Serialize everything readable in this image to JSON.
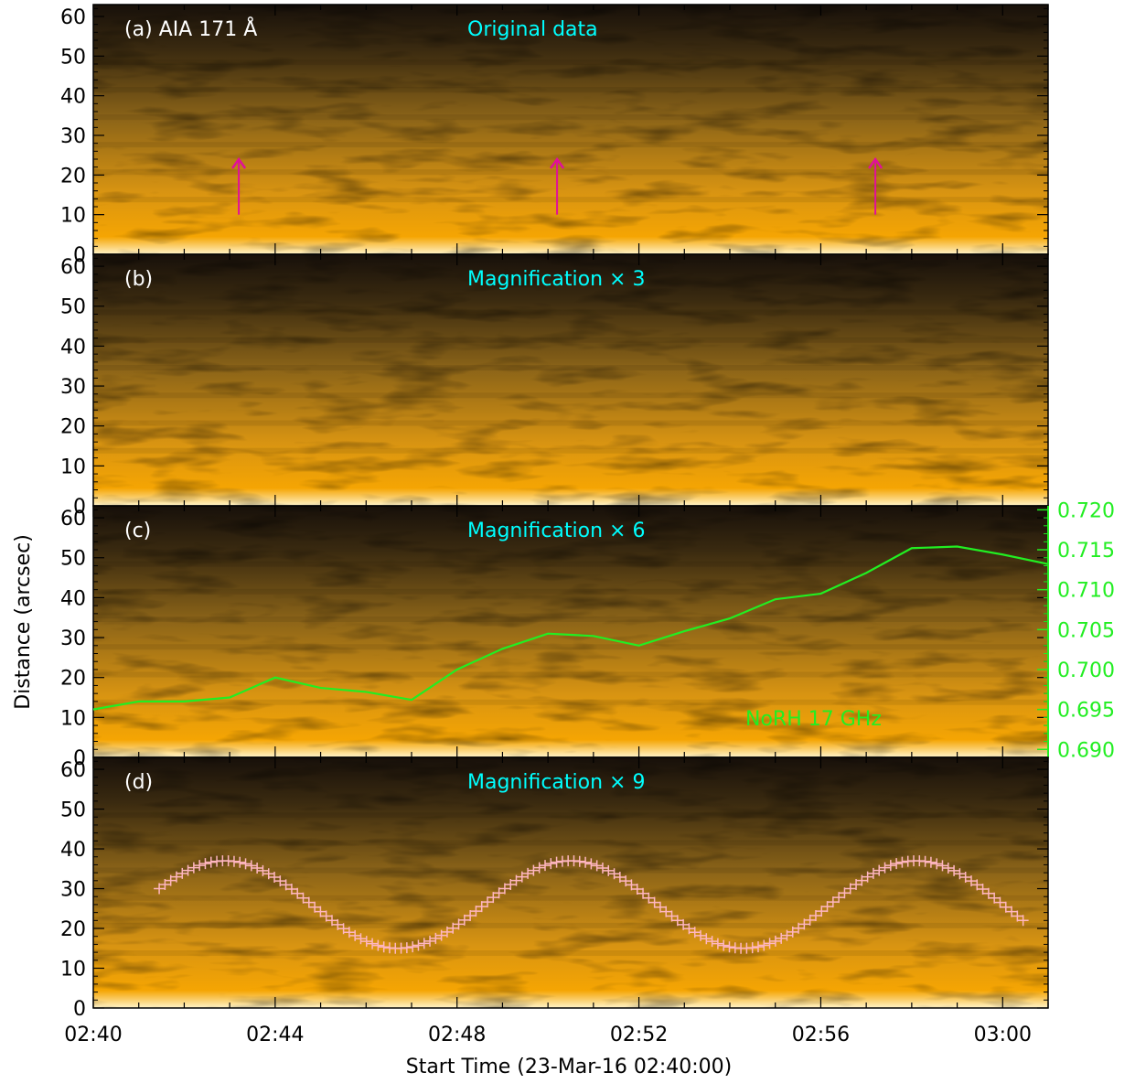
{
  "figure": {
    "xlabel": "Start Time (23-Mar-16 02:40:00)",
    "ylabel": "Distance (arcsec)"
  },
  "colors": {
    "panel_title": "#00ffff",
    "panel_label": "#ffffff",
    "arrow": "#e0109a",
    "norh_curve": "#22ee22",
    "fit_markers": "#ffb6c1",
    "colormap_dark": "#1a1206",
    "colormap_bright": "#ffa500"
  },
  "chart_data": [
    {
      "type": "heatmap",
      "panel_label": "(a) AIA 171 Å",
      "title": "Original data",
      "ylim": [
        0,
        63
      ],
      "xlim_minutes": [
        0,
        21
      ],
      "yticks": [
        "0",
        "10",
        "20",
        "30",
        "40",
        "50",
        "60"
      ],
      "arrows_at_minutes": [
        3.2,
        10.2,
        17.2
      ],
      "arrow_span_arcsec": [
        10,
        24
      ]
    },
    {
      "type": "heatmap",
      "panel_label": "(b)",
      "title": "Magnification × 3",
      "ylim": [
        0,
        63
      ],
      "xlim_minutes": [
        0,
        21
      ],
      "yticks": [
        "0",
        "10",
        "20",
        "30",
        "40",
        "50",
        "60"
      ]
    },
    {
      "type": "heatmap",
      "panel_label": "(c)",
      "title": "Magnification × 6",
      "ylim": [
        0,
        63
      ],
      "xlim_minutes": [
        0,
        21
      ],
      "yticks": [
        "0",
        "10",
        "20",
        "30",
        "40",
        "50",
        "60"
      ],
      "overlay": {
        "type": "line",
        "name": "NoRH 17 GHz",
        "right_axis_lim": [
          0.689,
          0.7205
        ],
        "right_ticks": [
          "0.690",
          "0.695",
          "0.700",
          "0.705",
          "0.710",
          "0.715",
          "0.720"
        ],
        "x_minutes": [
          0,
          1,
          2,
          3,
          4,
          5,
          6,
          7,
          8,
          9,
          10,
          11,
          12,
          13,
          14,
          15,
          16,
          17,
          18,
          19,
          20,
          21
        ],
        "values": [
          0.695,
          0.696,
          0.696,
          0.6965,
          0.699,
          0.6977,
          0.6972,
          0.6962,
          0.7,
          0.7026,
          0.7045,
          0.7042,
          0.703,
          0.7048,
          0.7064,
          0.7088,
          0.7095,
          0.7121,
          0.7152,
          0.7154,
          0.7144,
          0.7132
        ]
      }
    },
    {
      "type": "heatmap",
      "panel_label": "(d)",
      "title": "Magnification × 9",
      "ylim": [
        0,
        63
      ],
      "xlim_minutes": [
        0,
        21
      ],
      "yticks": [
        "0",
        "10",
        "20",
        "30",
        "40",
        "50",
        "60"
      ],
      "xticks": [
        "02:40",
        "02:44",
        "02:48",
        "02:52",
        "02:56",
        "03:00"
      ],
      "xtick_minutes": [
        0,
        4,
        8,
        12,
        16,
        20
      ],
      "overlay": {
        "type": "scatter",
        "marker": "+",
        "fit": "sinusoid",
        "x_start_minutes": 1.45,
        "x_end_minutes": 20.45,
        "mean_arcsec": 26,
        "amplitude_arcsec": 11,
        "period_minutes": 7.6,
        "peak_at_minutes": 2.9
      }
    }
  ]
}
